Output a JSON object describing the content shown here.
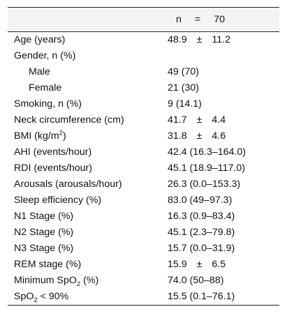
{
  "header": {
    "n_label": "n",
    "eq": "=",
    "n_value": "70"
  },
  "rows": [
    {
      "label": "Age (years)",
      "mean": "48.9",
      "pm": "±",
      "sd": "11.2"
    },
    {
      "label": "Gender, n (%)",
      "value": ""
    },
    {
      "label": "Male",
      "value": "49 (70)"
    },
    {
      "label": "Female",
      "value": "21 (30)"
    },
    {
      "label": "Smoking, n (%)",
      "value": "9 (14.1)"
    },
    {
      "label": "Neck circumference (cm)",
      "mean": "41.7",
      "pm": "±",
      "sd": "4.4"
    },
    {
      "label_pre": "BMI (kg/m",
      "label_sup": "2",
      "label_post": ")",
      "mean": "31.8",
      "pm": "±",
      "sd": "4.6"
    },
    {
      "label": "AHI (events/hour)",
      "value": "42.4 (16.3–164.0)"
    },
    {
      "label": "RDI (events/hour)",
      "value": "45.1 (18.9–117.0)"
    },
    {
      "label": "Arousals (arousals/hour)",
      "value": "26.3 (0.0–153.3)"
    },
    {
      "label": "Sleep efficiency (%)",
      "value": "83.0 (49–97.3)"
    },
    {
      "label": "N1 Stage (%)",
      "value": "16.3 (0.9–83.4)"
    },
    {
      "label": "N2 Stage (%)",
      "value": "45.1 (2.3–79.8)"
    },
    {
      "label": "N3 Stage (%)",
      "value": "15.7 (0.0–31.9)"
    },
    {
      "label": "REM stage (%)",
      "mean": "15.9",
      "pm": "±",
      "sd": "6.5"
    },
    {
      "label_pre": "Minimum SpO",
      "label_sub": "2",
      "label_post": " (%)",
      "value": "74.0 (50–88)"
    },
    {
      "label_pre": "SpO",
      "label_sub": "2",
      "label_post": " < 90%",
      "value": "15.5 (0.1–76.1)"
    }
  ]
}
